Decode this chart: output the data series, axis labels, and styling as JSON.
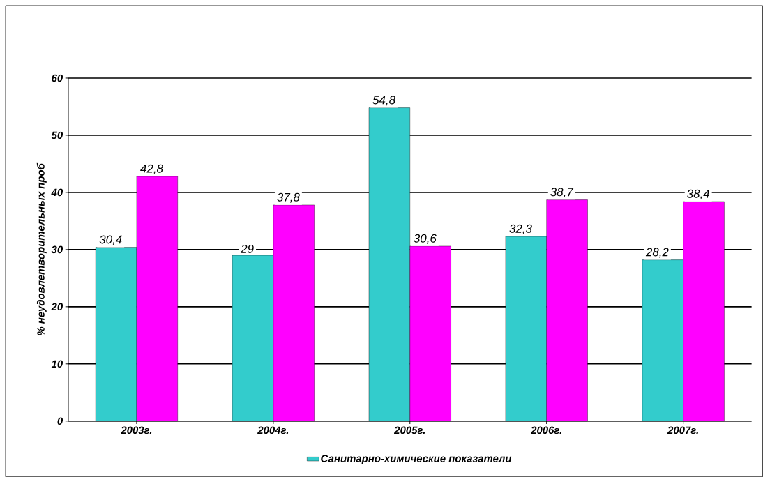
{
  "chart_data": {
    "type": "bar",
    "ylabel": "% неудовлетворительных проб",
    "categories": [
      "2003г.",
      "2004г.",
      "2005г.",
      "2006г.",
      "2007г."
    ],
    "series": [
      {
        "name": "Санитарно-химические  показатели",
        "color": "#33cccc",
        "values": [
          30.4,
          29,
          54.8,
          32.3,
          28.2
        ],
        "value_labels": [
          "30,4",
          "29",
          "54,8",
          "32,3",
          "28,2"
        ]
      },
      {
        "color": "#ff00ff",
        "values": [
          42.8,
          37.8,
          30.6,
          38.7,
          38.4
        ],
        "value_labels": [
          "42,8",
          "37,8",
          "30,6",
          "38,7",
          "38,4"
        ]
      }
    ],
    "ylim": [
      0,
      60
    ],
    "yticks": [
      0,
      10,
      20,
      30,
      40,
      50,
      60
    ],
    "grid": "y",
    "legend": "bottom"
  }
}
